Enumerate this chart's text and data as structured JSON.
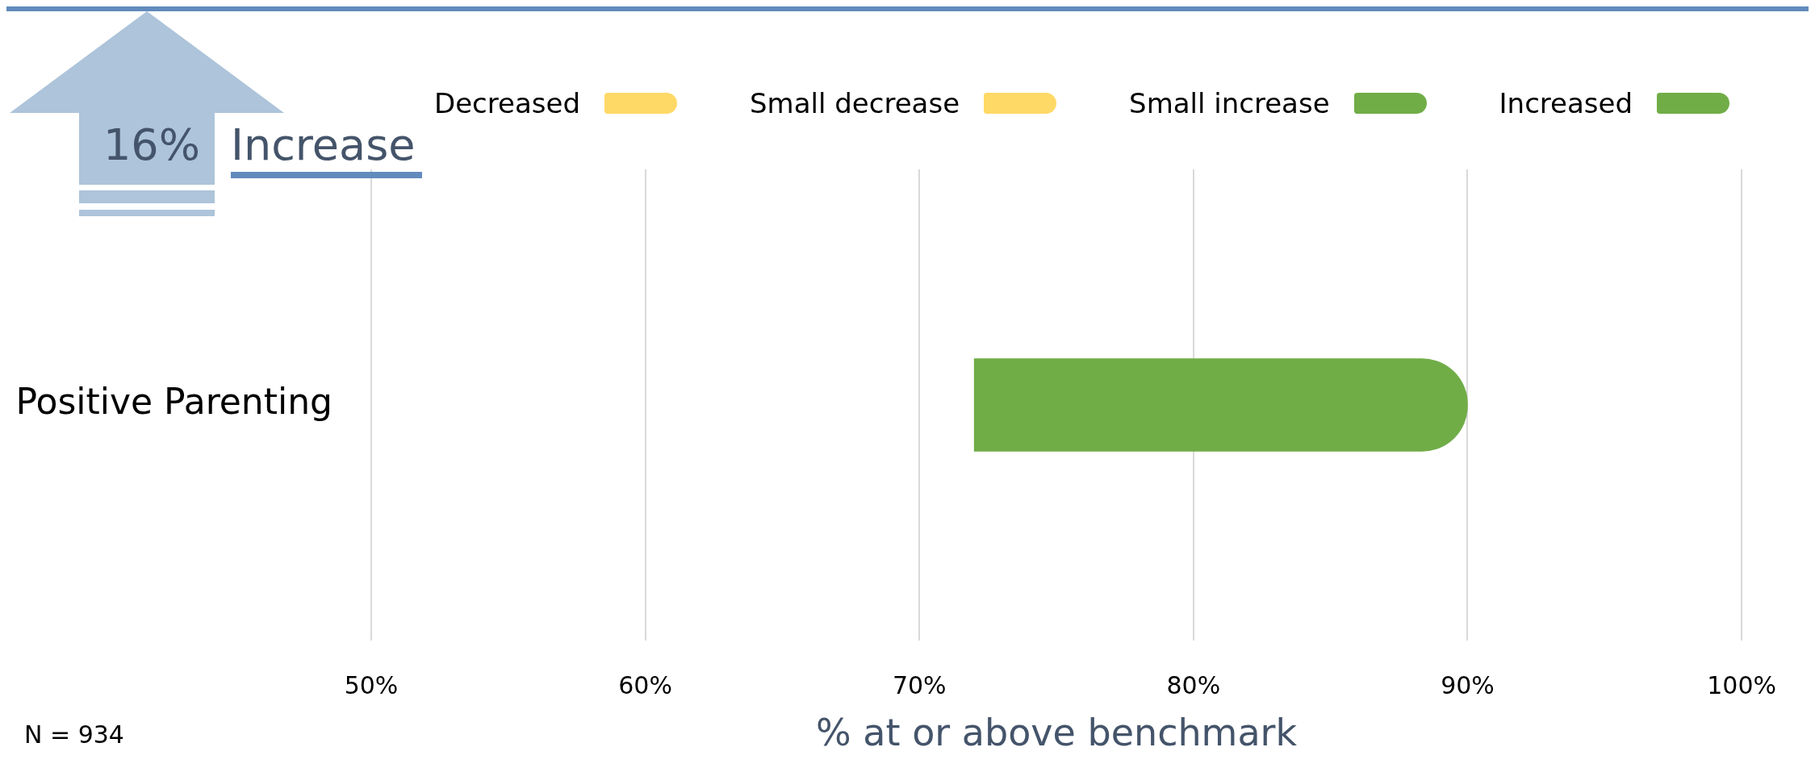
{
  "chart_data": {
    "type": "bar",
    "orientation": "horizontal",
    "categories": [
      "Positive Parenting"
    ],
    "series": [
      {
        "name": "Decreased",
        "color": "#ffd966",
        "values": [
          null
        ]
      },
      {
        "name": "Small decrease",
        "color": "#ffd966",
        "values": [
          null
        ]
      },
      {
        "name": "Small increase",
        "color": "#70ad47",
        "values": [
          null
        ]
      },
      {
        "name": "Increased",
        "color": "#70ad47",
        "values": [
          18
        ],
        "base": [
          72
        ]
      }
    ],
    "xlim": [
      50,
      100
    ],
    "xticks": [
      {
        "value": 50,
        "label": "50%"
      },
      {
        "value": 60,
        "label": "60%"
      },
      {
        "value": 70,
        "label": "70%"
      },
      {
        "value": 80,
        "label": "80%"
      },
      {
        "value": 90,
        "label": "90%"
      },
      {
        "value": 100,
        "label": "100%"
      }
    ],
    "xlabel": "% at or above benchmark",
    "grid": "x",
    "legend": "top",
    "annotations": [
      "16%",
      "Increase",
      "N = 934"
    ]
  }
}
